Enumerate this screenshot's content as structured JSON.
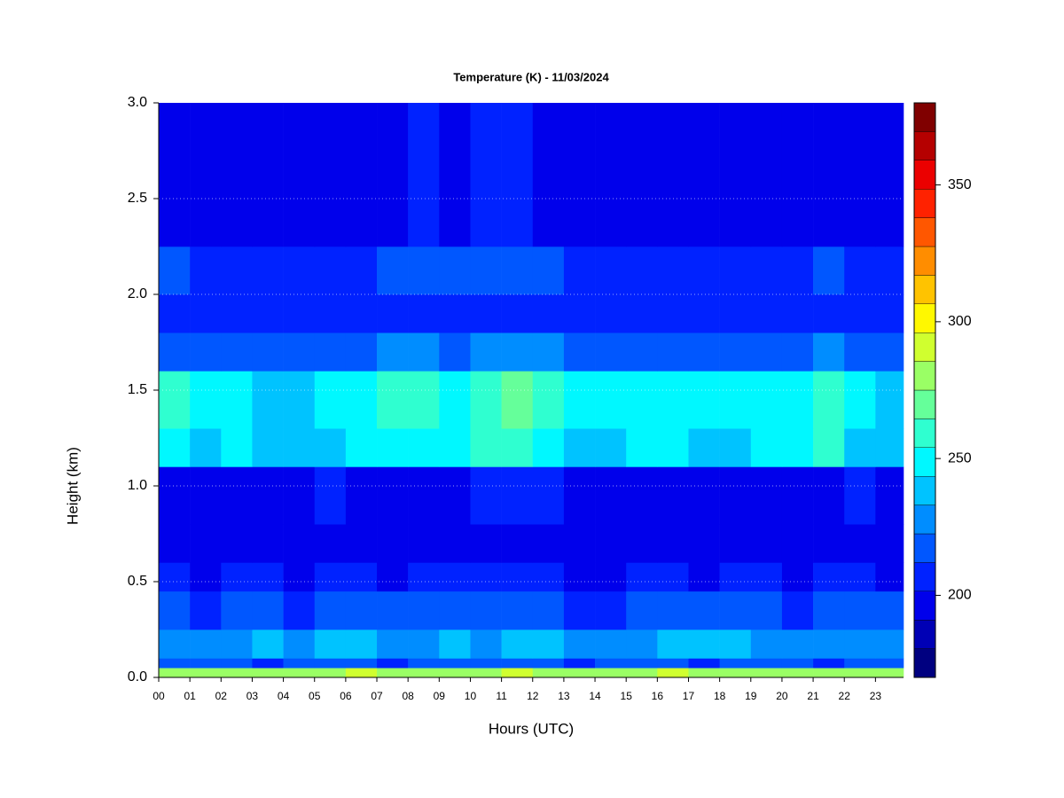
{
  "chart_data": {
    "type": "heatmap",
    "title": "Temperature (K) - 11/03/2024",
    "xlabel": "Hours (UTC)",
    "ylabel": "Height (km)",
    "colormap": "jet",
    "clim": [
      170,
      380
    ],
    "levels": 20,
    "cticks": [
      200,
      250,
      300,
      350
    ],
    "xlim": [
      0,
      23.9
    ],
    "ylim": [
      0,
      3
    ],
    "grid": true,
    "xticks": [
      {
        "value": 0,
        "label": "00"
      },
      {
        "value": 1,
        "label": "01"
      },
      {
        "value": 2,
        "label": "02"
      },
      {
        "value": 3,
        "label": "03"
      },
      {
        "value": 4,
        "label": "04"
      },
      {
        "value": 5,
        "label": "05"
      },
      {
        "value": 6,
        "label": "06"
      },
      {
        "value": 7,
        "label": "07"
      },
      {
        "value": 8,
        "label": "08"
      },
      {
        "value": 9,
        "label": "09"
      },
      {
        "value": 10,
        "label": "10"
      },
      {
        "value": 11,
        "label": "11"
      },
      {
        "value": 12,
        "label": "12"
      },
      {
        "value": 13,
        "label": "13"
      },
      {
        "value": 14,
        "label": "14"
      },
      {
        "value": 15,
        "label": "15"
      },
      {
        "value": 16,
        "label": "16"
      },
      {
        "value": 17,
        "label": "17"
      },
      {
        "value": 18,
        "label": "18"
      },
      {
        "value": 19,
        "label": "19"
      },
      {
        "value": 20,
        "label": "20"
      },
      {
        "value": 21,
        "label": "21"
      },
      {
        "value": 22,
        "label": "22"
      },
      {
        "value": 23,
        "label": "23"
      }
    ],
    "yticks": [
      {
        "value": 0,
        "label": "0.0"
      },
      {
        "value": 0.5,
        "label": "0.5"
      },
      {
        "value": 1,
        "label": "1.0"
      },
      {
        "value": 1.5,
        "label": "1.5"
      },
      {
        "value": 2,
        "label": "2.0"
      },
      {
        "value": 2.5,
        "label": "2.5"
      },
      {
        "value": 3,
        "label": "3.0"
      }
    ],
    "xbins": [
      0,
      1,
      2,
      3,
      4,
      5,
      6,
      7,
      8,
      9,
      10,
      11,
      12,
      13,
      14,
      15,
      16,
      17,
      18,
      19,
      20,
      21,
      22,
      23,
      23.9
    ],
    "ybins": [
      0,
      0.05,
      0.1,
      0.25,
      0.45,
      0.6,
      0.8,
      1.1,
      1.3,
      1.6,
      1.8,
      2.0,
      2.25,
      3.0
    ],
    "values": [
      [
        285,
        280,
        282,
        278,
        284,
        281,
        286,
        279,
        283,
        280,
        285,
        288,
        284,
        281,
        279,
        283,
        286,
        280,
        282,
        284,
        281,
        279,
        283,
        280
      ],
      [
        215,
        212,
        214,
        210,
        216,
        218,
        213,
        211,
        214,
        212,
        215,
        217,
        214,
        211,
        212,
        215,
        214,
        210,
        213,
        215,
        212,
        211,
        214,
        212
      ],
      [
        232,
        228,
        230,
        236,
        227,
        234,
        233,
        229,
        231,
        235,
        230,
        233,
        238,
        228,
        227,
        232,
        236,
        234,
        235,
        232,
        230,
        229,
        228,
        226
      ],
      [
        214,
        211,
        213,
        216,
        210,
        219,
        214,
        212,
        213,
        215,
        212,
        214,
        218,
        210,
        211,
        213,
        214,
        212,
        215,
        213,
        211,
        214,
        216,
        213
      ],
      [
        204,
        201,
        202,
        203,
        200,
        206,
        203,
        201,
        202,
        203,
        202,
        204,
        206,
        201,
        200,
        202,
        203,
        201,
        202,
        203,
        201,
        202,
        203,
        201
      ],
      [
        198,
        196,
        197,
        196,
        195,
        199,
        197,
        196,
        197,
        196,
        197,
        199,
        201,
        196,
        195,
        197,
        198,
        196,
        197,
        198,
        196,
        197,
        198,
        196
      ],
      [
        200,
        198,
        199,
        197,
        198,
        203,
        200,
        199,
        200,
        201,
        202,
        204,
        205,
        199,
        198,
        200,
        201,
        199,
        200,
        201,
        199,
        200,
        202,
        199
      ],
      [
        248,
        240,
        245,
        238,
        236,
        242,
        246,
        250,
        252,
        247,
        255,
        262,
        250,
        243,
        240,
        245,
        247,
        241,
        243,
        246,
        244,
        256,
        242,
        238
      ],
      [
        255,
        245,
        250,
        243,
        241,
        246,
        252,
        256,
        258,
        252,
        262,
        268,
        254,
        248,
        244,
        250,
        252,
        245,
        247,
        250,
        249,
        262,
        246,
        242
      ],
      [
        222,
        216,
        219,
        214,
        213,
        218,
        221,
        224,
        226,
        222,
        228,
        232,
        223,
        219,
        216,
        220,
        221,
        216,
        218,
        220,
        219,
        226,
        217,
        214
      ],
      [
        206,
        204,
        205,
        203,
        202,
        204,
        205,
        206,
        207,
        206,
        208,
        210,
        206,
        205,
        203,
        205,
        206,
        204,
        205,
        206,
        205,
        207,
        204,
        203
      ],
      [
        212,
        208,
        210,
        207,
        206,
        209,
        211,
        212,
        214,
        212,
        215,
        218,
        212,
        209,
        207,
        210,
        211,
        208,
        209,
        211,
        210,
        213,
        209,
        207
      ],
      [
        200,
        198,
        199,
        197,
        197,
        199,
        200,
        201,
        202,
        200,
        203,
        205,
        200,
        199,
        197,
        199,
        200,
        198,
        199,
        200,
        199,
        201,
        198,
        197
      ]
    ]
  }
}
